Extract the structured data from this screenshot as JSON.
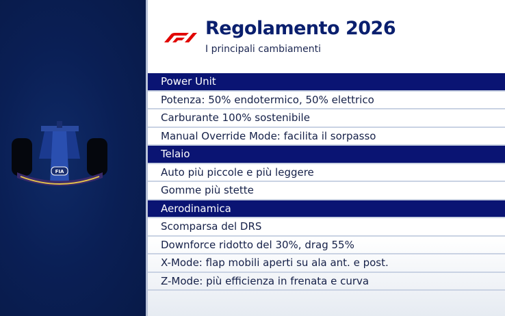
{
  "header": {
    "title": "Regolamento 2026",
    "subtitle": "I principali cambiamenti",
    "logo": "F1"
  },
  "sections": [
    {
      "label": "Power Unit",
      "items": [
        "Potenza: 50% endotermico, 50% elettrico",
        "Carburante 100% sostenibile",
        "Manual Override Mode: facilita il sorpasso"
      ]
    },
    {
      "label": "Telaio",
      "items": [
        "Auto più piccole e più leggere",
        "Gomme più stette"
      ]
    },
    {
      "label": "Aerodinamica",
      "items": [
        "Scomparsa del DRS",
        "Downforce ridotto del 30%, drag 55%",
        "X-Mode: flap mobili aperti su ala ant. e post.",
        "Z-Mode: più efficienza in frenata e curva"
      ]
    }
  ],
  "car_badge": "FIA",
  "colors": {
    "accent": "#0a1473",
    "f1_red": "#e10600",
    "panel": "#0a1f55"
  }
}
